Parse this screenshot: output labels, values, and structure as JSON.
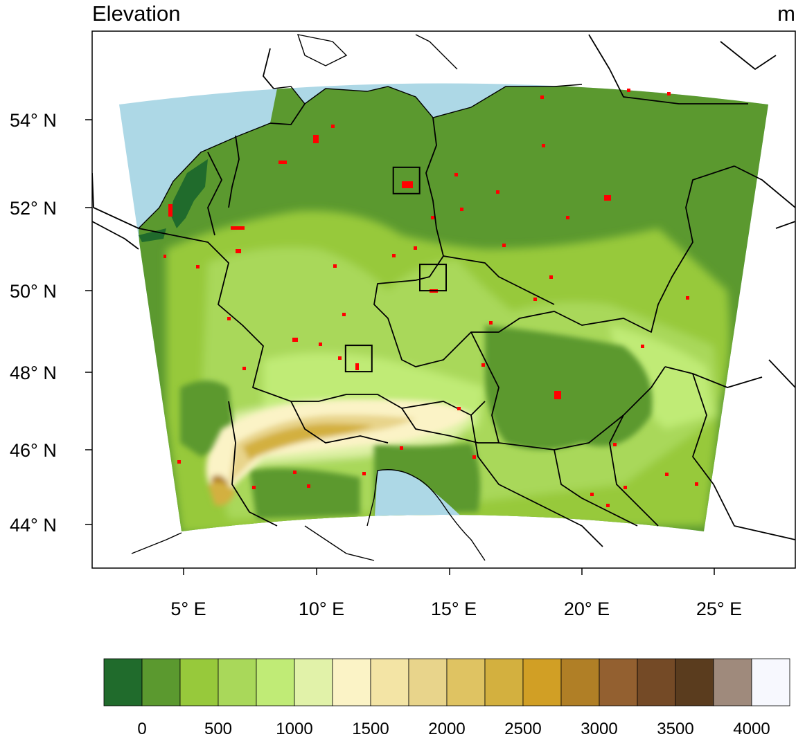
{
  "map": {
    "title": "Elevation",
    "units": "m",
    "lat_labels": [
      "54° N",
      "52° N",
      "50° N",
      "48° N",
      "46° N",
      "44° N"
    ],
    "lon_labels": [
      "5° E",
      "10° E",
      "15° E",
      "20° E",
      "25° E"
    ],
    "markers": [
      {
        "name": "marker-berlin",
        "lon": 13.4,
        "lat": 52.5
      },
      {
        "name": "marker-prague",
        "lon": 14.4,
        "lat": 50.1
      },
      {
        "name": "marker-munich",
        "lon": 11.6,
        "lat": 48.1
      }
    ]
  },
  "colorbar": {
    "labels": [
      "0",
      "500",
      "1000",
      "1500",
      "2000",
      "2500",
      "3000",
      "3500",
      "4000"
    ],
    "colors": [
      "#206b2c",
      "#5b992f",
      "#97c93b",
      "#a9d85a",
      "#c0eb76",
      "#e1f2a9",
      "#fbf3c6",
      "#f3e4a5",
      "#e8d48b",
      "#dfc362",
      "#d3b03f",
      "#d19f25",
      "#b07f26",
      "#936030",
      "#744a26",
      "#5a3c1e",
      "#9f8a7c",
      "#f7f8fe"
    ]
  },
  "colors": {
    "water": "#add8e6",
    "lowland": "#5b992f",
    "coast_dark": "#206b2c",
    "urban": "#ff0000"
  }
}
